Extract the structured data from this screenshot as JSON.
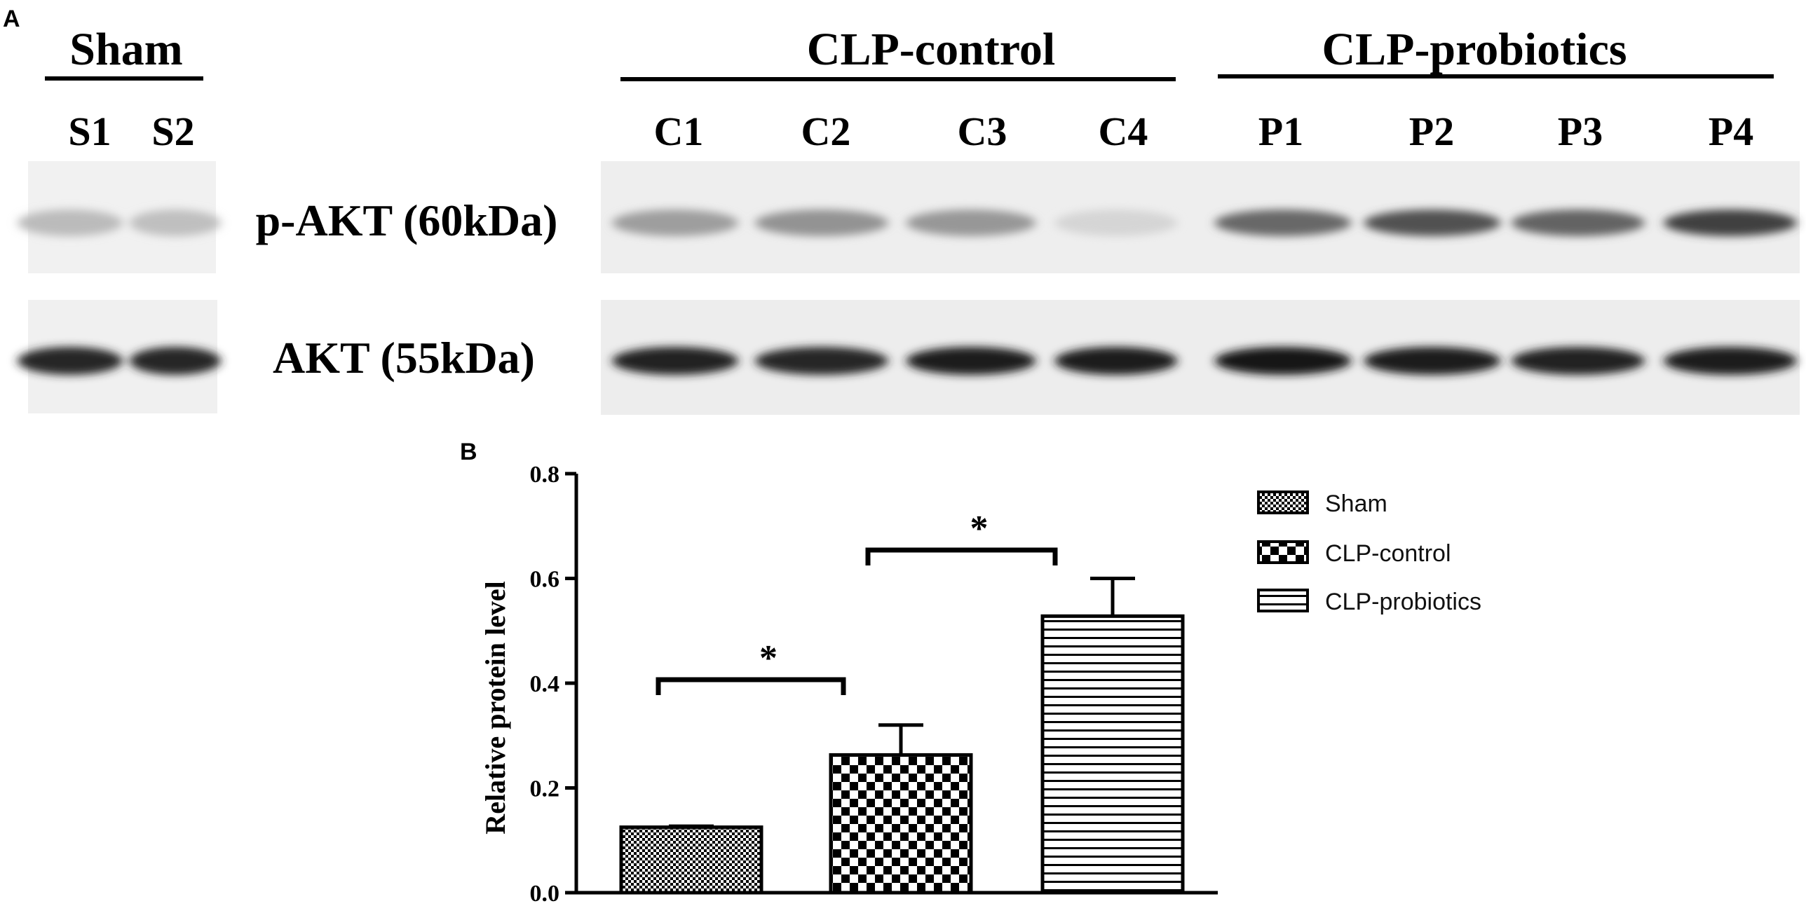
{
  "panel_a": {
    "letter": "A",
    "groups": [
      {
        "title": "Sham",
        "lanes": [
          "S1",
          "S2"
        ]
      },
      {
        "title": "CLP-control",
        "lanes": [
          "C1",
          "C2",
          "C3",
          "C4"
        ]
      },
      {
        "title": "CLP-probiotics",
        "lanes": [
          "P1",
          "P2",
          "P3",
          "P4"
        ]
      }
    ],
    "blots": [
      {
        "label": "p-AKT (60kDa)",
        "band_intensity": [
          0.22,
          0.2,
          0.35,
          0.4,
          0.38,
          0.1,
          0.6,
          0.7,
          0.62,
          0.78
        ]
      },
      {
        "label": "AKT (55kDa)",
        "band_intensity": [
          0.9,
          0.9,
          0.92,
          0.9,
          0.95,
          0.95,
          0.97,
          0.95,
          0.92,
          0.95
        ]
      }
    ]
  },
  "panel_b": {
    "letter": "B",
    "colors": {
      "bar_stroke": "#000000",
      "pattern_ink": "#000000"
    }
  },
  "chart_data": {
    "type": "bar",
    "title": "",
    "xlabel": "",
    "ylabel": "Relative protein level",
    "ylim": [
      0,
      0.8
    ],
    "yticks": [
      0.0,
      0.2,
      0.4,
      0.6,
      0.8
    ],
    "ytick_labels": [
      "0.0",
      "0.2",
      "0.4",
      "0.6",
      "0.8"
    ],
    "categories": [
      "Sham",
      "CLP-control",
      "CLP-probiotics"
    ],
    "values": [
      0.125,
      0.263,
      0.528
    ],
    "error_upper": [
      0.127,
      0.32,
      0.6
    ],
    "patterns": [
      "fine-check",
      "checkerboard",
      "horizontal-lines"
    ],
    "legend": {
      "position": "top-right",
      "entries": [
        "Sham",
        "CLP-control",
        "CLP-probiotics"
      ]
    },
    "significance": [
      {
        "from": "Sham",
        "to": "CLP-control",
        "label": "*"
      },
      {
        "from": "CLP-control",
        "to": "CLP-probiotics",
        "label": "*"
      }
    ],
    "grid": false
  }
}
